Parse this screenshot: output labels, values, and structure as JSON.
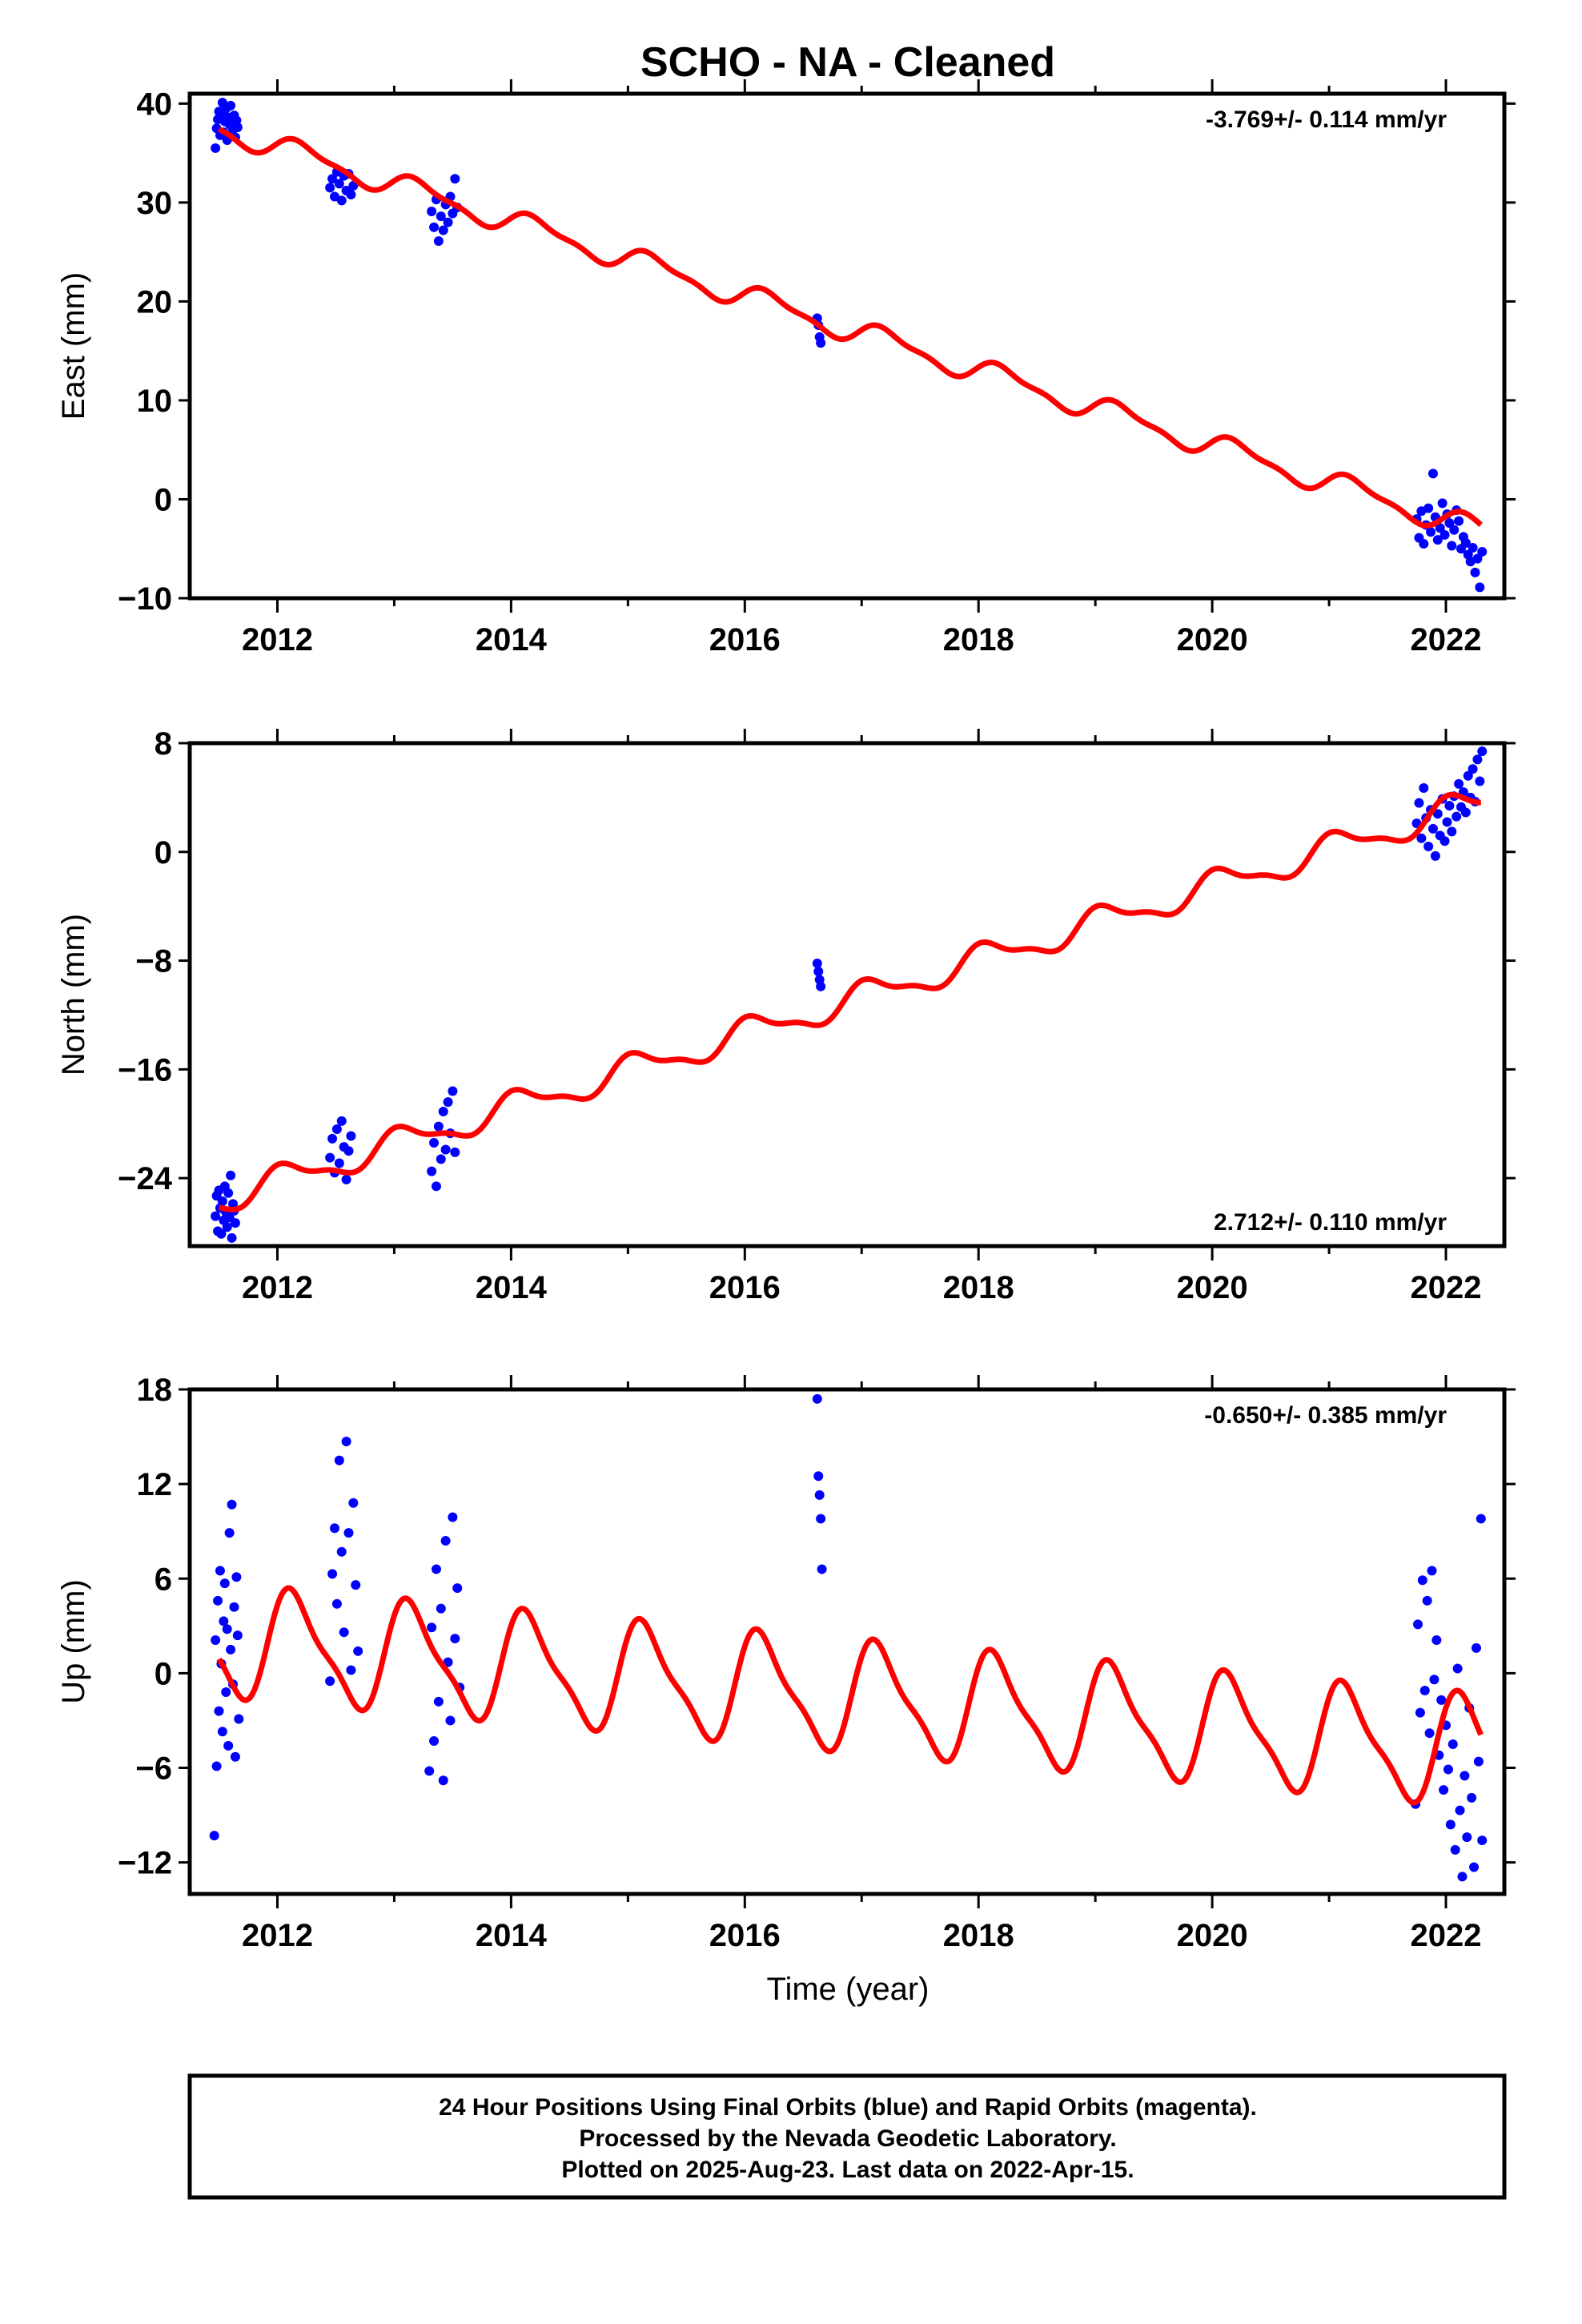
{
  "title": "SCHO  - NA - Cleaned",
  "colors": {
    "final_orbits": "#0000ff",
    "model": "#ff0000",
    "axes": "#000000"
  },
  "xlabel": "Time (year)",
  "footer": [
    "24 Hour Positions Using Final Orbits (blue) and Rapid Orbits (magenta).",
    "Processed by the Nevada Geodetic Laboratory.",
    "Plotted on 2025-Aug-23. Last data on 2022-Apr-15."
  ],
  "chart_data": [
    {
      "type": "scatter",
      "component": "east",
      "ylabel": "East (mm)",
      "rate_label": "-3.769+/- 0.114 mm/yr",
      "xlim": [
        2011.25,
        2022.5
      ],
      "ylim": [
        -10,
        41
      ],
      "xticks": [
        2012,
        2014,
        2016,
        2018,
        2020,
        2022
      ],
      "yticks": [
        -10,
        0,
        10,
        20,
        30,
        40
      ],
      "model": {
        "intercept_at_2011_5": 37.5,
        "rate_mm_per_yr": -3.769,
        "annual_amp": 1.1,
        "semiannual_amp": 0.4,
        "phase": 0.2
      },
      "series": [
        {
          "values_note_free": true,
          "points": [
            [
              2011.47,
              35.5
            ],
            [
              2011.48,
              37.5
            ],
            [
              2011.49,
              38.4
            ],
            [
              2011.5,
              39.2
            ],
            [
              2011.51,
              36.8
            ],
            [
              2011.52,
              38.9
            ],
            [
              2011.53,
              40.1
            ],
            [
              2011.54,
              37.1
            ],
            [
              2011.55,
              38.2
            ],
            [
              2011.56,
              39.5
            ],
            [
              2011.57,
              36.3
            ],
            [
              2011.58,
              38.6
            ],
            [
              2011.59,
              37.9
            ],
            [
              2011.6,
              39.8
            ],
            [
              2011.61,
              38.1
            ],
            [
              2011.62,
              37.4
            ],
            [
              2011.63,
              38.8
            ],
            [
              2011.64,
              36.6
            ],
            [
              2011.65,
              38.3
            ],
            [
              2011.66,
              37.6
            ],
            [
              2012.45,
              31.5
            ],
            [
              2012.47,
              32.4
            ],
            [
              2012.49,
              30.6
            ],
            [
              2012.51,
              33.1
            ],
            [
              2012.53,
              31.9
            ],
            [
              2012.55,
              30.2
            ],
            [
              2012.57,
              32.7
            ],
            [
              2012.59,
              31.2
            ],
            [
              2012.61,
              32.9
            ],
            [
              2012.63,
              30.8
            ],
            [
              2012.65,
              31.7
            ],
            [
              2013.32,
              29.1
            ],
            [
              2013.34,
              27.5
            ],
            [
              2013.36,
              30.3
            ],
            [
              2013.38,
              26.1
            ],
            [
              2013.4,
              28.6
            ],
            [
              2013.42,
              27.2
            ],
            [
              2013.44,
              29.8
            ],
            [
              2013.46,
              28.0
            ],
            [
              2013.48,
              30.6
            ],
            [
              2013.5,
              28.9
            ],
            [
              2013.52,
              32.4
            ],
            [
              2013.54,
              29.5
            ],
            [
              2016.62,
              18.3
            ],
            [
              2016.63,
              17.6
            ],
            [
              2016.64,
              16.4
            ],
            [
              2016.65,
              15.8
            ],
            [
              2021.75,
              -2.0
            ],
            [
              2021.77,
              -3.9
            ],
            [
              2021.79,
              -1.2
            ],
            [
              2021.81,
              -4.5
            ],
            [
              2021.83,
              -2.6
            ],
            [
              2021.85,
              -0.9
            ],
            [
              2021.87,
              -3.3
            ],
            [
              2021.89,
              2.6
            ],
            [
              2021.91,
              -1.8
            ],
            [
              2021.93,
              -4.1
            ],
            [
              2021.95,
              -2.9
            ],
            [
              2021.97,
              -0.4
            ],
            [
              2021.99,
              -3.6
            ],
            [
              2022.01,
              -1.5
            ],
            [
              2022.03,
              -2.4
            ],
            [
              2022.05,
              -4.7
            ],
            [
              2022.07,
              -3.1
            ],
            [
              2022.09,
              -1.1
            ],
            [
              2022.11,
              -2.2
            ],
            [
              2022.13,
              -5.0
            ],
            [
              2022.15,
              -3.8
            ],
            [
              2022.17,
              -4.4
            ],
            [
              2022.19,
              -5.6
            ],
            [
              2022.21,
              -6.3
            ],
            [
              2022.23,
              -4.9
            ],
            [
              2022.25,
              -7.4
            ],
            [
              2022.27,
              -6.0
            ],
            [
              2022.29,
              -8.9
            ],
            [
              2022.31,
              -5.3
            ]
          ]
        }
      ]
    },
    {
      "type": "scatter",
      "component": "north",
      "ylabel": "North (mm)",
      "rate_label": "2.712+/- 0.110 mm/yr",
      "xlim": [
        2011.25,
        2022.5
      ],
      "ylim": [
        -29,
        8
      ],
      "xticks": [
        2012,
        2014,
        2016,
        2018,
        2020,
        2022
      ],
      "yticks": [
        -24,
        -16,
        -8,
        0,
        8
      ],
      "model": {
        "intercept_at_2011_5": -25.6,
        "rate_mm_per_yr": 2.712,
        "annual_amp": 1.0,
        "semiannual_amp": 0.35,
        "phase": 1.1
      },
      "series": [
        {
          "points": [
            [
              2011.47,
              -26.8
            ],
            [
              2011.48,
              -25.3
            ],
            [
              2011.49,
              -27.9
            ],
            [
              2011.5,
              -24.9
            ],
            [
              2011.51,
              -26.2
            ],
            [
              2011.52,
              -28.1
            ],
            [
              2011.53,
              -25.7
            ],
            [
              2011.54,
              -27.1
            ],
            [
              2011.55,
              -24.6
            ],
            [
              2011.56,
              -26.5
            ],
            [
              2011.57,
              -27.6
            ],
            [
              2011.58,
              -25.1
            ],
            [
              2011.59,
              -26.9
            ],
            [
              2011.6,
              -23.8
            ],
            [
              2011.61,
              -28.4
            ],
            [
              2011.62,
              -25.9
            ],
            [
              2011.63,
              -26.4
            ],
            [
              2011.64,
              -27.3
            ],
            [
              2012.45,
              -22.5
            ],
            [
              2012.47,
              -21.1
            ],
            [
              2012.49,
              -23.6
            ],
            [
              2012.51,
              -20.4
            ],
            [
              2012.53,
              -22.9
            ],
            [
              2012.55,
              -19.8
            ],
            [
              2012.57,
              -21.7
            ],
            [
              2012.59,
              -24.1
            ],
            [
              2012.61,
              -22.0
            ],
            [
              2012.63,
              -20.9
            ],
            [
              2013.32,
              -23.5
            ],
            [
              2013.34,
              -21.4
            ],
            [
              2013.36,
              -24.6
            ],
            [
              2013.38,
              -20.2
            ],
            [
              2013.4,
              -22.6
            ],
            [
              2013.42,
              -19.1
            ],
            [
              2013.44,
              -21.9
            ],
            [
              2013.46,
              -18.4
            ],
            [
              2013.48,
              -20.7
            ],
            [
              2013.5,
              -17.6
            ],
            [
              2013.52,
              -22.1
            ],
            [
              2016.62,
              -8.2
            ],
            [
              2016.63,
              -8.8
            ],
            [
              2016.64,
              -9.4
            ],
            [
              2016.65,
              -9.9
            ],
            [
              2021.75,
              2.1
            ],
            [
              2021.77,
              3.6
            ],
            [
              2021.79,
              1.0
            ],
            [
              2021.81,
              4.7
            ],
            [
              2021.83,
              2.5
            ],
            [
              2021.85,
              0.4
            ],
            [
              2021.87,
              3.1
            ],
            [
              2021.89,
              1.7
            ],
            [
              2021.91,
              -0.3
            ],
            [
              2021.93,
              2.8
            ],
            [
              2021.95,
              1.2
            ],
            [
              2021.97,
              3.9
            ],
            [
              2021.99,
              0.8
            ],
            [
              2022.01,
              2.2
            ],
            [
              2022.03,
              3.4
            ],
            [
              2022.05,
              1.5
            ],
            [
              2022.07,
              4.1
            ],
            [
              2022.09,
              2.6
            ],
            [
              2022.11,
              5.0
            ],
            [
              2022.13,
              3.3
            ],
            [
              2022.15,
              4.4
            ],
            [
              2022.17,
              2.9
            ],
            [
              2022.19,
              5.6
            ],
            [
              2022.21,
              4.0
            ],
            [
              2022.23,
              6.1
            ],
            [
              2022.25,
              3.7
            ],
            [
              2022.27,
              6.8
            ],
            [
              2022.29,
              5.2
            ],
            [
              2022.31,
              7.4
            ]
          ]
        }
      ]
    },
    {
      "type": "scatter",
      "component": "up",
      "ylabel": "Up (mm)",
      "rate_label": "-0.650+/- 0.385 mm/yr",
      "xlim": [
        2011.25,
        2022.5
      ],
      "ylim": [
        -14,
        18
      ],
      "xticks": [
        2012,
        2014,
        2016,
        2018,
        2020,
        2022
      ],
      "yticks": [
        -12,
        -6,
        0,
        6,
        12,
        18
      ],
      "model": {
        "intercept_at_2011_5": 2.0,
        "rate_mm_per_yr": -0.65,
        "annual_amp": 3.3,
        "semiannual_amp": 0.9,
        "phase": 0.6
      },
      "series": [
        {
          "points": [
            [
              2011.46,
              -10.3
            ],
            [
              2011.47,
              2.1
            ],
            [
              2011.48,
              -5.9
            ],
            [
              2011.49,
              4.6
            ],
            [
              2011.5,
              -2.4
            ],
            [
              2011.51,
              6.5
            ],
            [
              2011.52,
              0.6
            ],
            [
              2011.53,
              -3.7
            ],
            [
              2011.54,
              3.3
            ],
            [
              2011.55,
              5.7
            ],
            [
              2011.56,
              -1.2
            ],
            [
              2011.57,
              2.8
            ],
            [
              2011.58,
              -4.6
            ],
            [
              2011.59,
              8.9
            ],
            [
              2011.6,
              1.5
            ],
            [
              2011.61,
              10.7
            ],
            [
              2011.62,
              -0.7
            ],
            [
              2011.63,
              4.2
            ],
            [
              2011.64,
              -5.3
            ],
            [
              2011.65,
              6.1
            ],
            [
              2011.66,
              2.4
            ],
            [
              2011.67,
              -2.9
            ],
            [
              2012.45,
              -0.5
            ],
            [
              2012.47,
              6.3
            ],
            [
              2012.49,
              9.2
            ],
            [
              2012.51,
              4.4
            ],
            [
              2012.53,
              13.5
            ],
            [
              2012.55,
              7.7
            ],
            [
              2012.57,
              2.6
            ],
            [
              2012.59,
              14.7
            ],
            [
              2012.61,
              8.9
            ],
            [
              2012.63,
              0.2
            ],
            [
              2012.65,
              10.8
            ],
            [
              2012.67,
              5.6
            ],
            [
              2012.69,
              1.4
            ],
            [
              2013.3,
              -6.2
            ],
            [
              2013.32,
              2.9
            ],
            [
              2013.34,
              -4.3
            ],
            [
              2013.36,
              6.6
            ],
            [
              2013.38,
              -1.8
            ],
            [
              2013.4,
              4.1
            ],
            [
              2013.42,
              -6.8
            ],
            [
              2013.44,
              8.4
            ],
            [
              2013.46,
              0.7
            ],
            [
              2013.48,
              -3.0
            ],
            [
              2013.5,
              9.9
            ],
            [
              2013.52,
              2.2
            ],
            [
              2013.54,
              5.4
            ],
            [
              2013.56,
              -0.9
            ],
            [
              2016.62,
              17.4
            ],
            [
              2016.63,
              12.5
            ],
            [
              2016.64,
              11.3
            ],
            [
              2016.65,
              9.8
            ],
            [
              2016.66,
              6.6
            ],
            [
              2021.74,
              -8.3
            ],
            [
              2021.76,
              3.1
            ],
            [
              2021.78,
              -2.5
            ],
            [
              2021.8,
              5.9
            ],
            [
              2021.82,
              -1.1
            ],
            [
              2021.84,
              4.6
            ],
            [
              2021.86,
              -3.8
            ],
            [
              2021.88,
              6.5
            ],
            [
              2021.9,
              -0.4
            ],
            [
              2021.92,
              2.1
            ],
            [
              2021.94,
              -5.2
            ],
            [
              2021.96,
              -1.7
            ],
            [
              2021.98,
              -7.4
            ],
            [
              2022.0,
              -3.3
            ],
            [
              2022.02,
              -6.1
            ],
            [
              2022.04,
              -9.6
            ],
            [
              2022.06,
              -4.5
            ],
            [
              2022.08,
              -11.2
            ],
            [
              2022.1,
              0.3
            ],
            [
              2022.12,
              -8.7
            ],
            [
              2022.14,
              -12.9
            ],
            [
              2022.16,
              -6.5
            ],
            [
              2022.18,
              -10.4
            ],
            [
              2022.2,
              -2.2
            ],
            [
              2022.22,
              -7.9
            ],
            [
              2022.24,
              -12.3
            ],
            [
              2022.26,
              1.6
            ],
            [
              2022.28,
              -5.6
            ],
            [
              2022.3,
              9.8
            ],
            [
              2022.31,
              -10.6
            ]
          ]
        }
      ]
    }
  ]
}
